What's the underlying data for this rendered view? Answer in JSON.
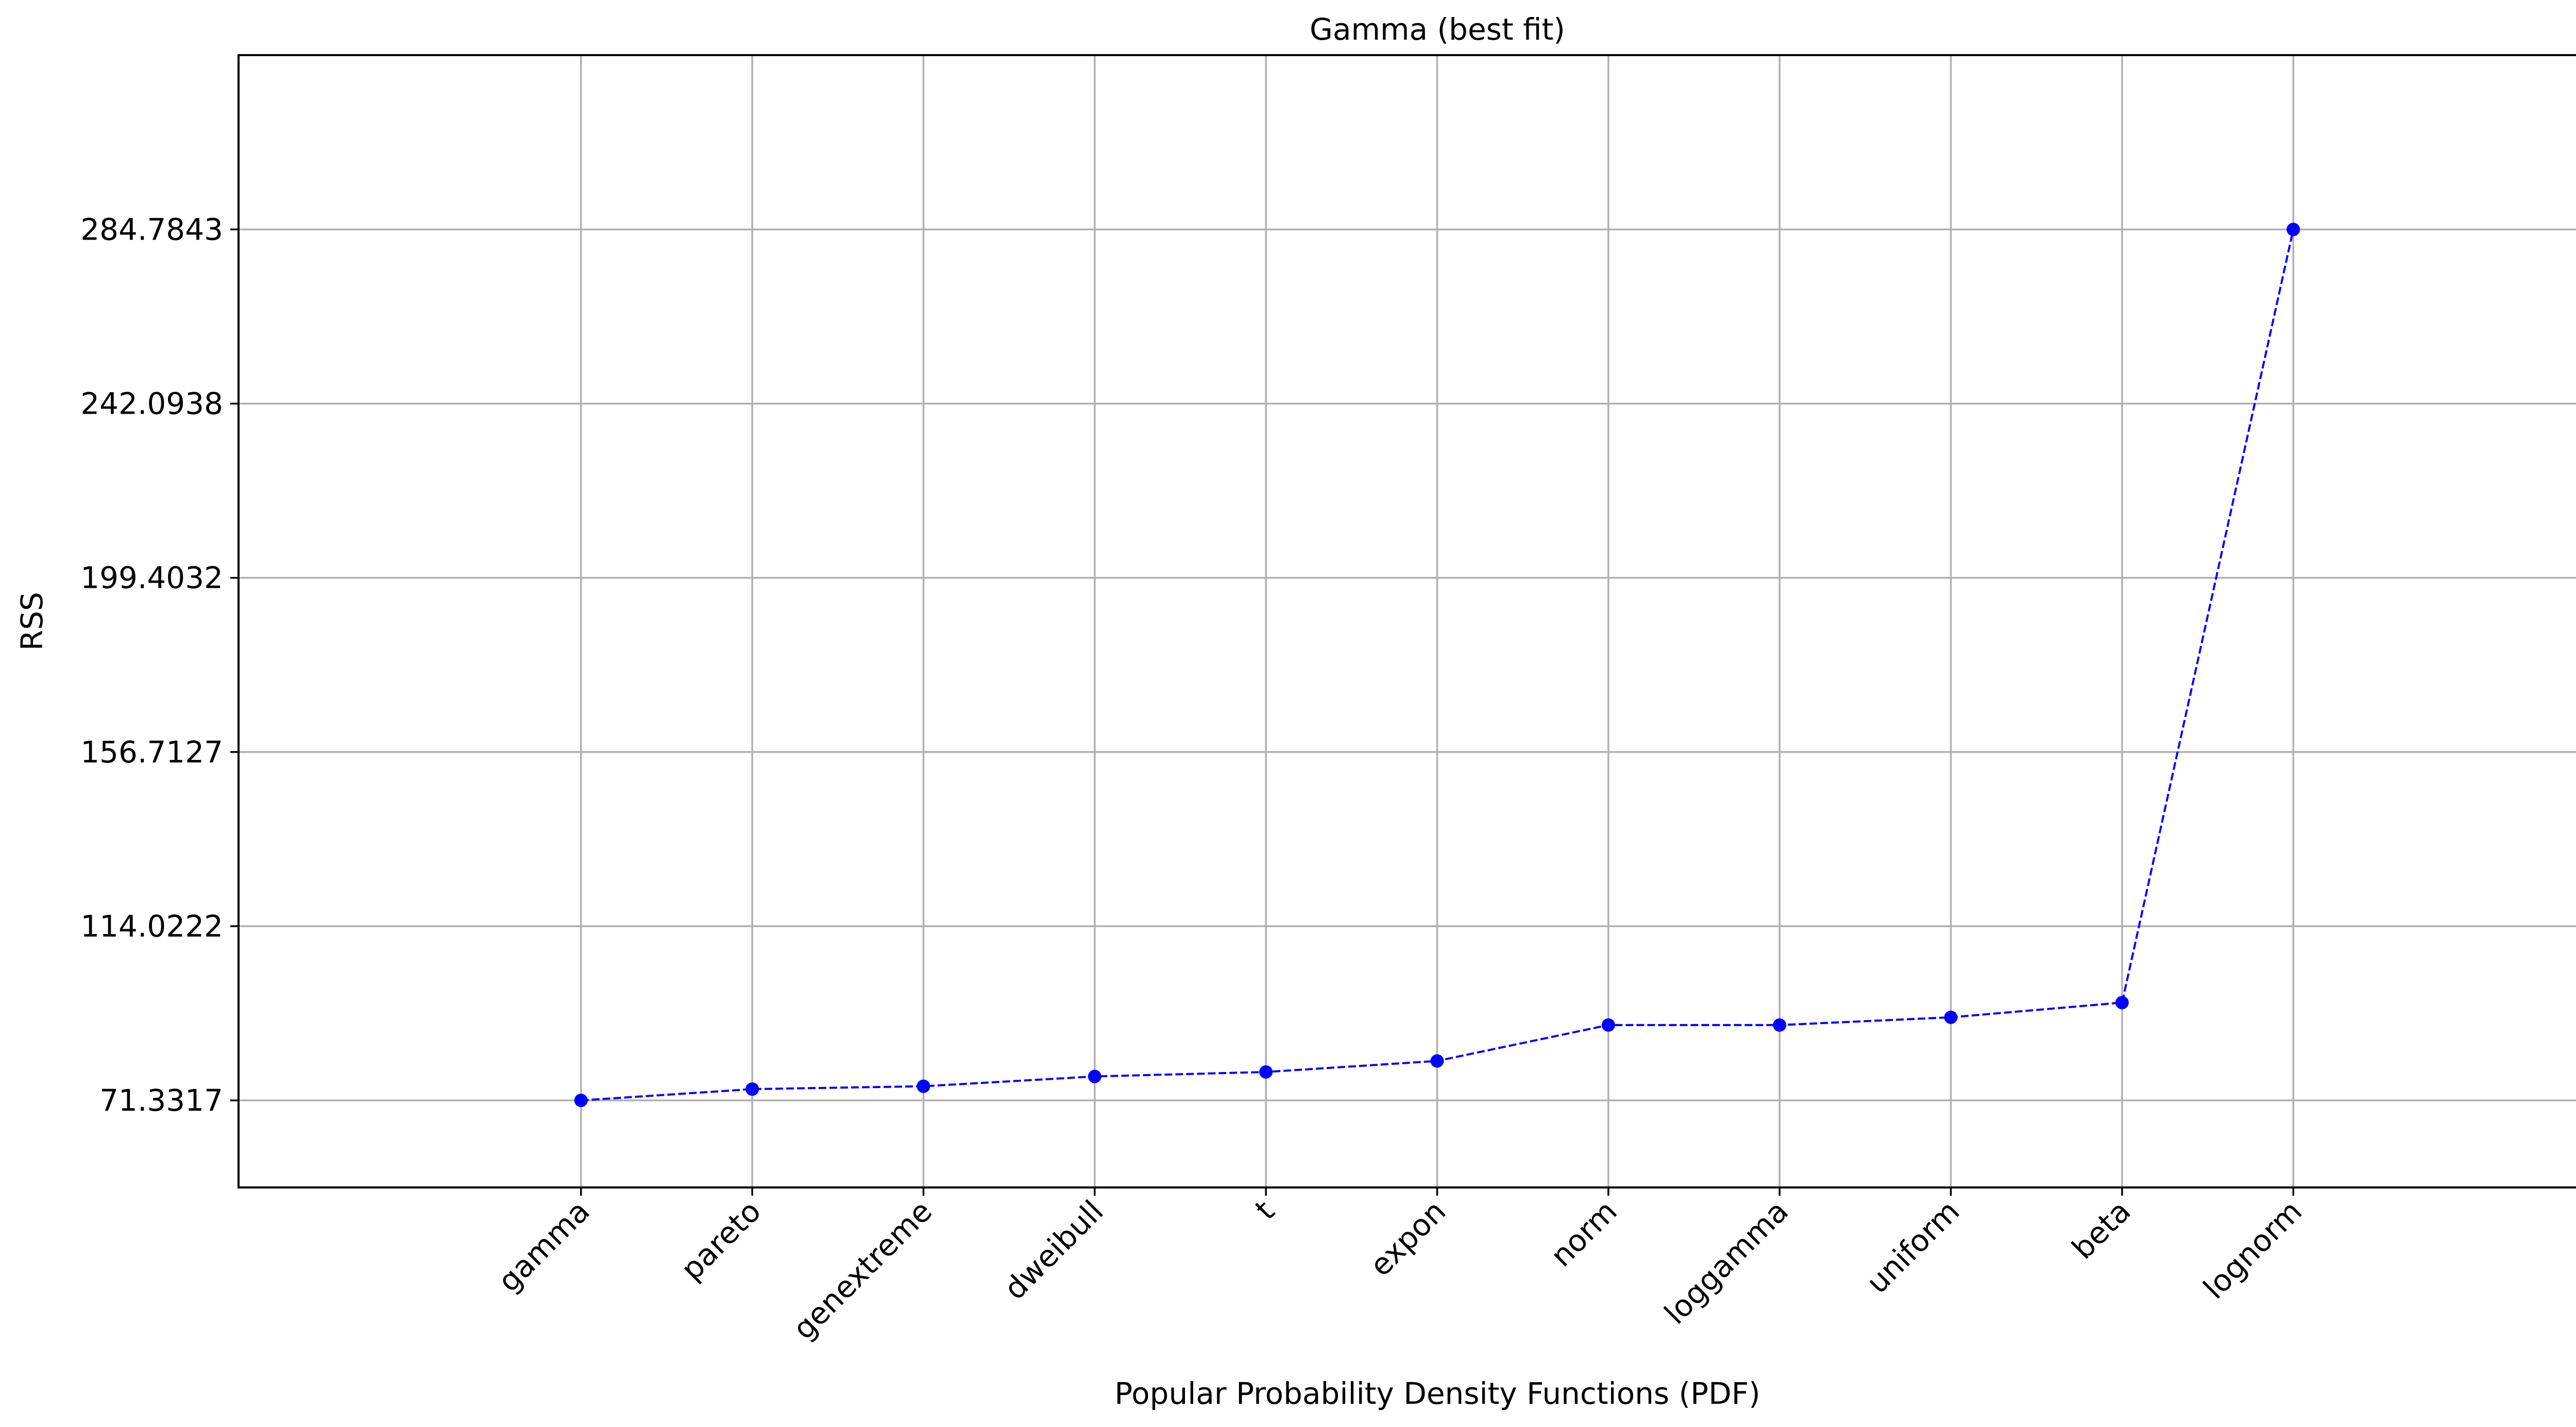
{
  "chart_data": {
    "type": "line",
    "title": "Gamma (best fit)",
    "xlabel": "Popular Probability Density Functions (PDF)",
    "ylabel": "RSS",
    "categories": [
      "gamma",
      "pareto",
      "genextreme",
      "dweibull",
      "t",
      "expon",
      "norm",
      "loggamma",
      "uniform",
      "beta",
      "lognorm"
    ],
    "series": [
      {
        "values": [
          71.33,
          74.1,
          74.8,
          77.2,
          78.3,
          81.0,
          89.8,
          89.8,
          91.7,
          95.3,
          284.78
        ]
      }
    ],
    "yticks": [
      71.3317,
      114.0222,
      156.7127,
      199.4032,
      242.0938,
      284.7843
    ],
    "ytick_labels": [
      "71.3317",
      "114.0222",
      "156.7127",
      "199.4032",
      "242.0938",
      "284.7843"
    ],
    "ylim": [
      50.0,
      327.5
    ],
    "xlim": [
      -2,
      12
    ],
    "grid": true,
    "line_style": "dashed",
    "marker": "circle",
    "color": "#0000ff"
  }
}
